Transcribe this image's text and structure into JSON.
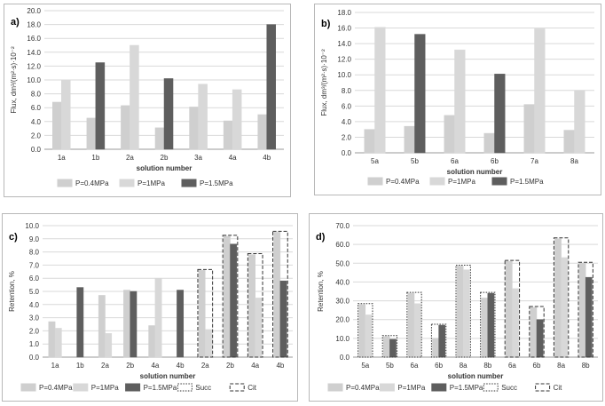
{
  "colors": {
    "p04": "#cfcfcf",
    "p1": "#d8d8d8",
    "p15": "#5e5e5e",
    "grid": "#d9d9d9",
    "axis_text": "#333333",
    "border": "#b8b8b8"
  },
  "chart_data": [
    {
      "panel_label": "a)",
      "type": "bar",
      "ylabel": "Flux, dm³/(m²·s)·10⁻²",
      "xlabel": "solution number",
      "ylim": [
        0,
        20
      ],
      "yticks": [
        "0.0",
        "2.0",
        "4.0",
        "6.0",
        "8.0",
        "10.0",
        "12.0",
        "14.0",
        "16.0",
        "18.0",
        "20.0"
      ],
      "categories": [
        "1a",
        "1b",
        "2a",
        "2b",
        "3a",
        "4a",
        "4b"
      ],
      "series": [
        {
          "name": "P=0.4MPa",
          "color_key": "p04",
          "values": [
            6.8,
            4.5,
            6.3,
            3.1,
            6.1,
            4.1,
            5.0
          ]
        },
        {
          "name": "P=1MPa",
          "color_key": "p1",
          "values": [
            10.0,
            null,
            15.0,
            null,
            9.4,
            8.6,
            null
          ]
        },
        {
          "name": "P=1.5MPa",
          "color_key": "p15",
          "values": [
            null,
            12.5,
            null,
            10.2,
            null,
            null,
            18.0
          ]
        }
      ],
      "legend": [
        "P=0.4MPa",
        "P=1MPa",
        "P=1.5MPa"
      ]
    },
    {
      "panel_label": "b)",
      "type": "bar",
      "ylabel": "Flux, dm³/(m²·s)·10⁻²",
      "xlabel": "solution number",
      "ylim": [
        0,
        18
      ],
      "yticks": [
        "0.0",
        "2.0",
        "4.0",
        "6.0",
        "8.0",
        "10.0",
        "12.0",
        "14.0",
        "16.0",
        "18.0"
      ],
      "categories": [
        "5a",
        "5b",
        "6a",
        "6b",
        "7a",
        "8a"
      ],
      "series": [
        {
          "name": "P=0.4MPa",
          "color_key": "p04",
          "values": [
            3.0,
            3.4,
            4.8,
            2.5,
            6.2,
            2.9
          ]
        },
        {
          "name": "P=1MPa",
          "color_key": "p1",
          "values": [
            16.1,
            null,
            13.2,
            null,
            15.9,
            8.0
          ]
        },
        {
          "name": "P=1.5MPa",
          "color_key": "p15",
          "values": [
            null,
            15.2,
            null,
            10.1,
            null,
            null
          ]
        }
      ],
      "legend": [
        "P=0.4MPa",
        "P=1MPa",
        "P=1.5MPa"
      ]
    },
    {
      "panel_label": "c)",
      "type": "bar",
      "ylabel": "Retention, %",
      "xlabel": "solution number",
      "ylim": [
        0,
        10
      ],
      "yticks": [
        "0.0",
        "1.0",
        "2.0",
        "3.0",
        "4.0",
        "5.0",
        "6.0",
        "7.0",
        "8.0",
        "9.0",
        "10.0"
      ],
      "categories": [
        "1a",
        "1b",
        "2a",
        "2b",
        "4a",
        "4b",
        "2a",
        "2b",
        "4a",
        "4b"
      ],
      "series": [
        {
          "name": "P=0.4MPa",
          "color_key": "p04",
          "values": [
            2.7,
            null,
            4.7,
            5.1,
            2.4,
            null,
            6.6,
            9.2,
            7.8,
            9.5
          ]
        },
        {
          "name": "P=1MPa",
          "color_key": "p1",
          "values": [
            2.2,
            null,
            1.8,
            null,
            6.0,
            null,
            2.1,
            null,
            4.5,
            null
          ]
        },
        {
          "name": "P=1.5MPa",
          "color_key": "p15",
          "values": [
            null,
            5.3,
            null,
            5.0,
            null,
            5.1,
            null,
            8.6,
            null,
            5.8
          ]
        }
      ],
      "border_style": [
        "none",
        "none",
        "none",
        "none",
        "none",
        "none",
        "dashed",
        "dashed",
        "dashed",
        "dashed"
      ],
      "legend": [
        "P=0.4MPa",
        "P=1MPa",
        "P=1.5MPa",
        "Succ",
        "Cit"
      ]
    },
    {
      "panel_label": "d)",
      "type": "bar",
      "ylabel": "Retention, %",
      "xlabel": "solution number",
      "ylim": [
        0,
        70
      ],
      "yticks": [
        "0.0",
        "10.0",
        "20.0",
        "30.0",
        "40.0",
        "50.0",
        "60.0",
        "70.0"
      ],
      "categories": [
        "5a",
        "5b",
        "6a",
        "6b",
        "8a",
        "8b",
        "6a",
        "6b",
        "8a",
        "8b"
      ],
      "series": [
        {
          "name": "P=0.4MPa",
          "color_key": "p04",
          "values": [
            28.0,
            11.0,
            34.0,
            10.0,
            48.5,
            31.5,
            51.0,
            26.5,
            63.0,
            50.0
          ]
        },
        {
          "name": "P=1MPa",
          "color_key": "p1",
          "values": [
            22.5,
            null,
            28.5,
            null,
            46.5,
            null,
            36.5,
            null,
            53.0,
            null
          ]
        },
        {
          "name": "P=1.5MPa",
          "color_key": "p15",
          "values": [
            null,
            9.5,
            null,
            17.0,
            null,
            34.0,
            null,
            20.0,
            null,
            42.5
          ]
        }
      ],
      "border_style": [
        "dotted",
        "dotted",
        "dotted",
        "dotted",
        "dotted",
        "dotted",
        "dashed",
        "dashed",
        "dashed",
        "dashed"
      ],
      "legend": [
        "P=0.4MPa",
        "P=1MPa",
        "P=1.5MPa",
        "Succ",
        "Cit"
      ]
    }
  ]
}
